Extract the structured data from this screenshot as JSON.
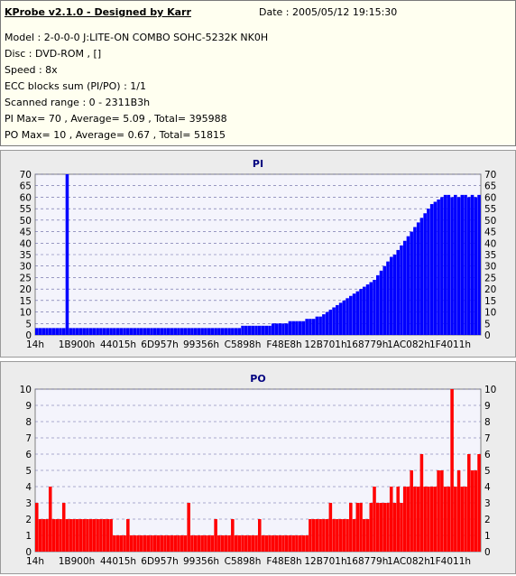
{
  "header": {
    "title": "KProbe v2.1.0 - Designed by Karr",
    "date": "Date : 2005/05/12 19:15:30",
    "model": "Model : 2-0-0-0 J:LITE-ON COMBO SOHC-5232K NK0H",
    "disc": "Disc : DVD-ROM ,  []",
    "speed": "Speed : 8x",
    "ecc": "ECC blocks sum (PI/PO) : 1/1",
    "range": "Scanned range : 0 - 2311B3h",
    "pi_stats": "PI Max= 70 , Average= 5.09 , Total= 395988",
    "po_stats": "PO Max= 10 , Average= 0.67 , Total= 51815"
  },
  "colors": {
    "pi": "#0000ff",
    "po": "#ff0000",
    "grid": "#6060a0",
    "plot_bg": "#f4f4fc"
  },
  "chart_data": [
    {
      "type": "bar",
      "title": "PI",
      "xlabel": "",
      "ylabel": "",
      "ylim": [
        0,
        70
      ],
      "yticks": [
        0,
        5,
        10,
        15,
        20,
        25,
        30,
        35,
        40,
        45,
        50,
        55,
        60,
        65,
        70
      ],
      "xtick_labels": [
        "14h",
        "1B900h",
        "44015h",
        "6D957h",
        "99356h",
        "C5898h",
        "F48E8h",
        "12B701h",
        "168779h",
        "1AC082h",
        "1F4011h"
      ],
      "grid": true,
      "series": [
        {
          "values": [
            3,
            3,
            3,
            3,
            3,
            3,
            3,
            3,
            3,
            70,
            3,
            3,
            3,
            3,
            3,
            3,
            3,
            3,
            3,
            3,
            3,
            3,
            3,
            3,
            3,
            3,
            3,
            3,
            3,
            3,
            3,
            3,
            3,
            3,
            3,
            3,
            3,
            3,
            3,
            3,
            3,
            3,
            3,
            3,
            3,
            3,
            3,
            3,
            3,
            3,
            3,
            3,
            3,
            3,
            3,
            3,
            3,
            3,
            3,
            3,
            3,
            4,
            4,
            4,
            4,
            4,
            4,
            4,
            4,
            4,
            5,
            5,
            5,
            5,
            5,
            6,
            6,
            6,
            6,
            6,
            7,
            7,
            7,
            8,
            8,
            9,
            10,
            11,
            12,
            13,
            14,
            15,
            16,
            17,
            18,
            19,
            20,
            21,
            22,
            23,
            24,
            26,
            28,
            30,
            32,
            34,
            35,
            37,
            39,
            41,
            43,
            45,
            47,
            49,
            51,
            53,
            55,
            57,
            58,
            59,
            60,
            61,
            61,
            60,
            61,
            60,
            61,
            61,
            60,
            61,
            60,
            61
          ]
        }
      ]
    },
    {
      "type": "bar",
      "title": "PO",
      "xlabel": "",
      "ylabel": "",
      "ylim": [
        0,
        10
      ],
      "yticks": [
        0,
        1,
        2,
        3,
        4,
        5,
        6,
        7,
        8,
        9,
        10
      ],
      "xtick_labels": [
        "14h",
        "1B900h",
        "44015h",
        "6D957h",
        "99356h",
        "C5898h",
        "F48E8h",
        "12B701h",
        "168779h",
        "1AC082h",
        "1F4011h"
      ],
      "grid": true,
      "series": [
        {
          "values": [
            3,
            2,
            2,
            2,
            4,
            2,
            2,
            2,
            3,
            2,
            2,
            2,
            2,
            2,
            2,
            2,
            2,
            2,
            2,
            2,
            2,
            2,
            2,
            1,
            1,
            1,
            1,
            2,
            1,
            1,
            1,
            1,
            1,
            1,
            1,
            1,
            1,
            1,
            1,
            1,
            1,
            1,
            1,
            1,
            1,
            3,
            1,
            1,
            1,
            1,
            1,
            1,
            1,
            2,
            1,
            1,
            1,
            1,
            2,
            1,
            1,
            1,
            1,
            1,
            1,
            1,
            2,
            1,
            1,
            1,
            1,
            1,
            1,
            1,
            1,
            1,
            1,
            1,
            1,
            1,
            1,
            2,
            2,
            2,
            2,
            2,
            2,
            3,
            2,
            2,
            2,
            2,
            2,
            3,
            2,
            3,
            3,
            2,
            2,
            3,
            4,
            3,
            3,
            3,
            3,
            4,
            3,
            4,
            3,
            4,
            4,
            5,
            4,
            4,
            6,
            4,
            4,
            4,
            4,
            5,
            5,
            4,
            4,
            10,
            4,
            5,
            4,
            4,
            6,
            5,
            5,
            6
          ]
        }
      ]
    }
  ]
}
